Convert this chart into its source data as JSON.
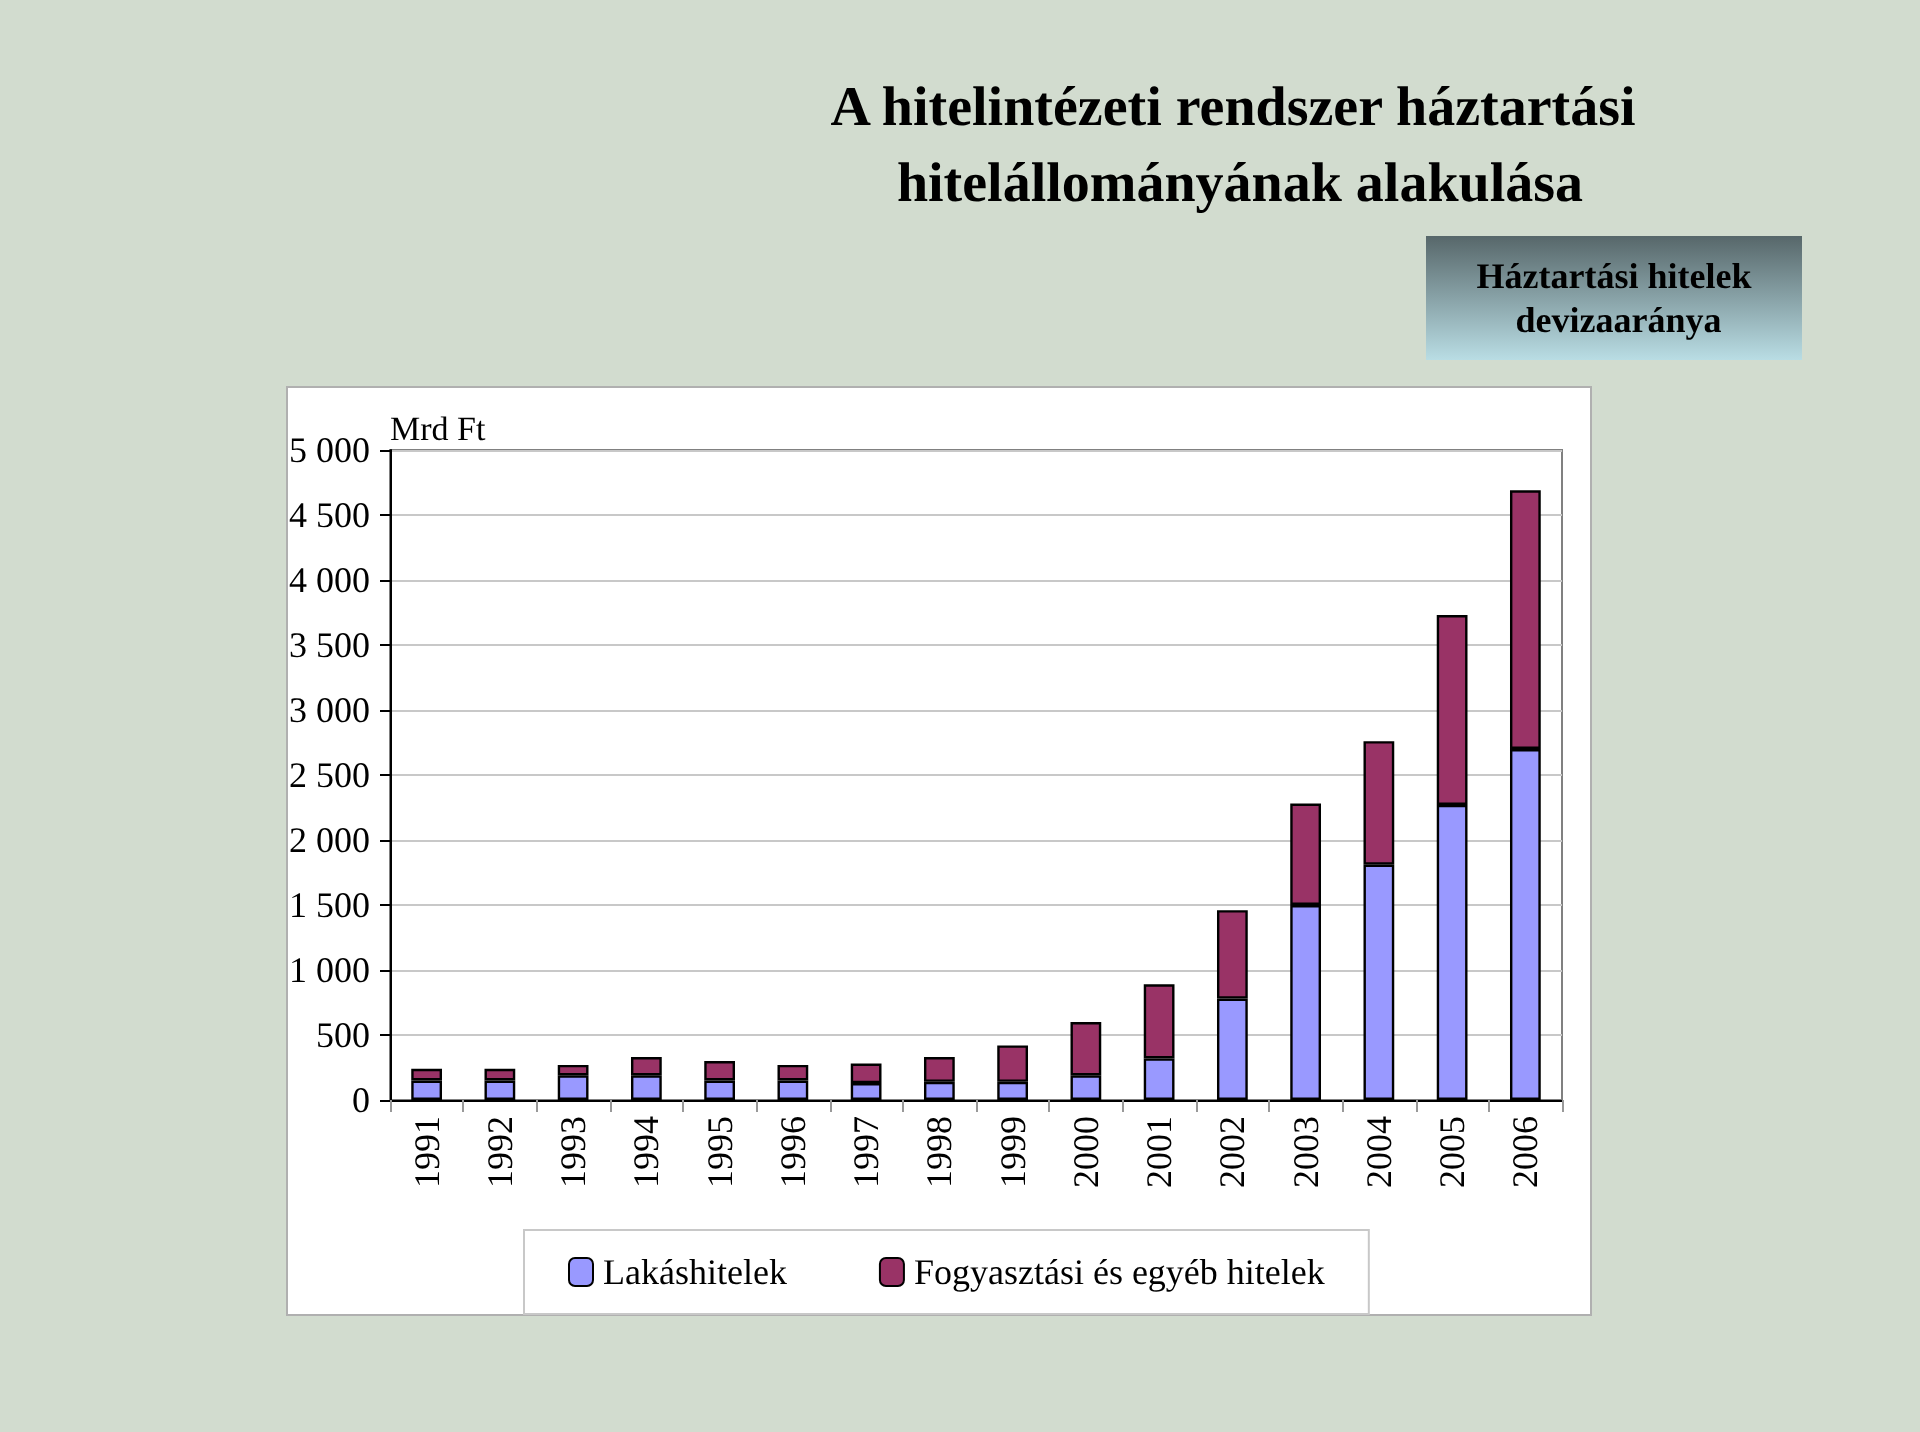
{
  "chart_data": {
    "type": "bar",
    "title": "A hitelintézeti rendszer háztartási hitelállományának alakulása",
    "ylabel": "Mrd Ft",
    "annotations": [
      "Háztartási hitelek devizaaránya"
    ],
    "categories": [
      "1991",
      "1992",
      "1993",
      "1994",
      "1995",
      "1996",
      "1997",
      "1998",
      "1999",
      "2000",
      "2001",
      "2002",
      "2003",
      "2004",
      "2005",
      "2006"
    ],
    "series": [
      {
        "name": "Lakáshitelek",
        "color": "#9999ff",
        "values": [
          150,
          150,
          190,
          190,
          150,
          150,
          130,
          140,
          140,
          190,
          320,
          780,
          1500,
          1810,
          2270,
          2700
        ]
      },
      {
        "name": "Fogyasztási és egyéb hitelek",
        "color": "#993366",
        "values": [
          90,
          90,
          80,
          140,
          150,
          120,
          150,
          190,
          280,
          410,
          570,
          680,
          780,
          950,
          1460,
          1990
        ]
      }
    ],
    "stacked": true,
    "ylim": [
      0,
      5000
    ],
    "yticks": [
      0,
      500,
      {
        "value": 1000,
        "label": "1 000"
      },
      {
        "value": 1500,
        "label": "1 500"
      },
      {
        "value": 2000,
        "label": "2 000"
      },
      {
        "value": 2500,
        "label": "2 500"
      },
      {
        "value": 3000,
        "label": "3 000"
      },
      {
        "value": 3500,
        "label": "3 500"
      },
      {
        "value": 4000,
        "label": "4 000"
      },
      {
        "value": 4500,
        "label": "4 500"
      },
      {
        "value": 5000,
        "label": "5 000"
      }
    ],
    "grid": "y",
    "legend": "bottom"
  }
}
